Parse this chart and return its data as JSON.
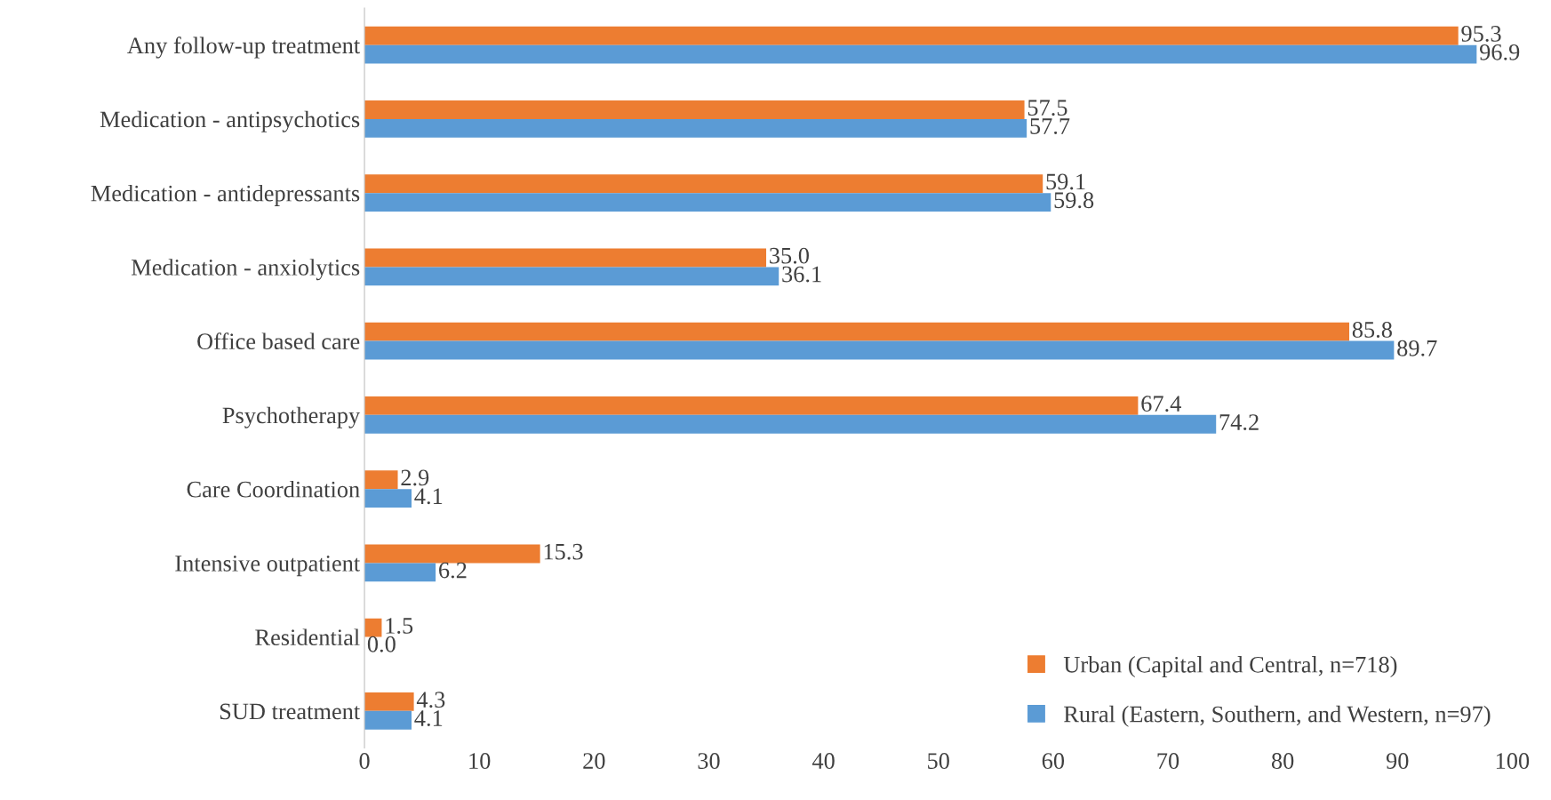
{
  "chart_data": {
    "type": "bar",
    "orientation": "horizontal",
    "categories": [
      "Any follow-up treatment",
      "Medication - antipsychotics",
      "Medication - antidepressants",
      "Medication - anxiolytics",
      "Office based care",
      "Psychotherapy",
      "Care Coordination",
      "Intensive outpatient",
      "Residential",
      "SUD treatment"
    ],
    "series": [
      {
        "name": "Urban (Capital and Central, n=718)",
        "color": "#ed7d31",
        "values": [
          95.3,
          57.5,
          59.1,
          35.0,
          85.8,
          67.4,
          2.9,
          15.3,
          1.5,
          4.3
        ],
        "value_labels": [
          "95.3",
          "57.5",
          "59.1",
          "35.0",
          "85.8",
          "67.4",
          "2.9",
          "15.3",
          "1.5",
          "4.3"
        ]
      },
      {
        "name": "Rural (Eastern, Southern, and Western, n=97)",
        "color": "#5b9bd5",
        "values": [
          96.9,
          57.7,
          59.8,
          36.1,
          89.7,
          74.2,
          4.1,
          6.2,
          0.0,
          4.1
        ],
        "value_labels": [
          "96.9",
          "57.7",
          "59.8",
          "36.1",
          "89.7",
          "74.2",
          "4.1",
          "6.2",
          "0.0",
          "4.1"
        ]
      }
    ],
    "xlim": [
      0,
      100
    ],
    "xticks": [
      0,
      10,
      20,
      30,
      40,
      50,
      60,
      70,
      80,
      90,
      100
    ],
    "legend": "bottom right",
    "grid": false
  }
}
